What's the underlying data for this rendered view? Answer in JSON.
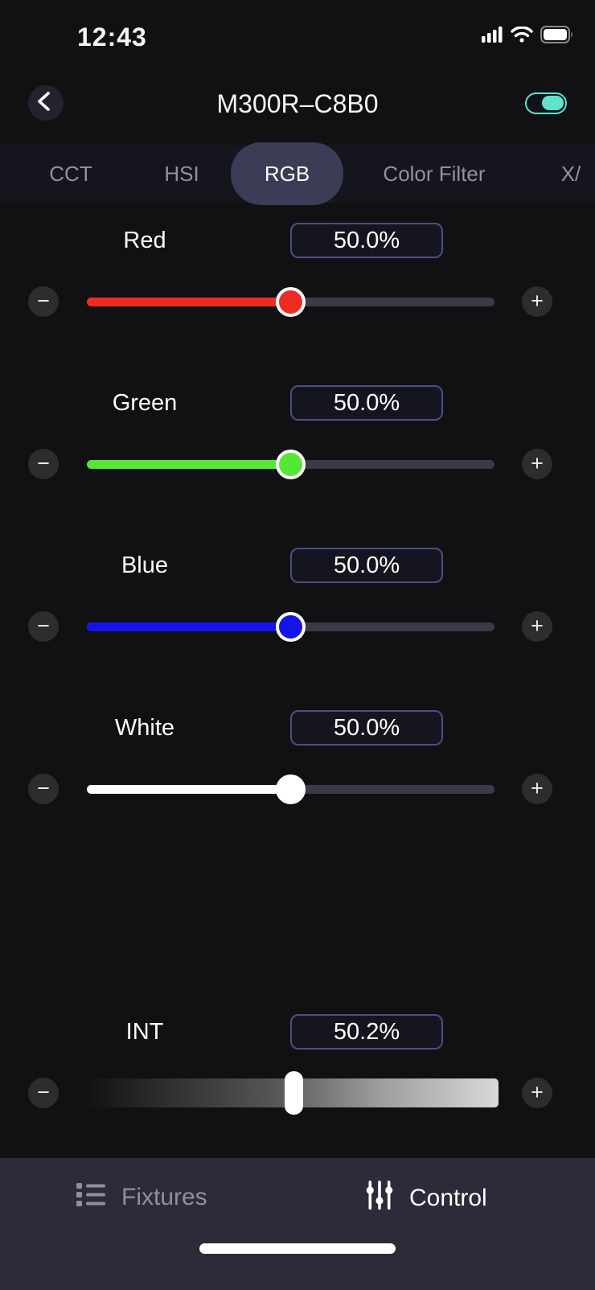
{
  "status_bar": {
    "time": "12:43",
    "icons": [
      "cellular-signal-icon",
      "wifi-icon",
      "battery-icon"
    ]
  },
  "header": {
    "title": "M300R–C8B0",
    "power_toggle_on": true
  },
  "tabs": {
    "selected": "RGB",
    "items": [
      {
        "label": "CCT"
      },
      {
        "label": "HSI"
      },
      {
        "label": "RGB"
      },
      {
        "label": "Color Filter"
      },
      {
        "label": "X/"
      }
    ]
  },
  "slider_controls": {
    "decrease": "−",
    "increase": "+"
  },
  "sliders": [
    {
      "label": "Red",
      "value": "50.0%",
      "percent": 50,
      "color": "#ee2b20"
    },
    {
      "label": "Green",
      "value": "50.0%",
      "percent": 50,
      "color": "#55e636"
    },
    {
      "label": "Blue",
      "value": "50.0%",
      "percent": 50,
      "color": "#1414e8"
    },
    {
      "label": "White",
      "value": "50.0%",
      "percent": 50,
      "color": "#ffffff"
    }
  ],
  "intensity": {
    "label": "INT",
    "value": "50.2%",
    "percent": 50.2
  },
  "bottom_nav": {
    "items": [
      {
        "label": "Fixtures",
        "icon": "list-icon",
        "active": false
      },
      {
        "label": "Control",
        "icon": "sliders-icon",
        "active": true
      }
    ]
  },
  "colors": {
    "accent_teal": "#5fe3cc",
    "tab_pill": "#3a3d55",
    "value_box_border": "#4c4f86",
    "track_rest": "#3a3a49",
    "bottom_bar": "#2b2b39"
  }
}
